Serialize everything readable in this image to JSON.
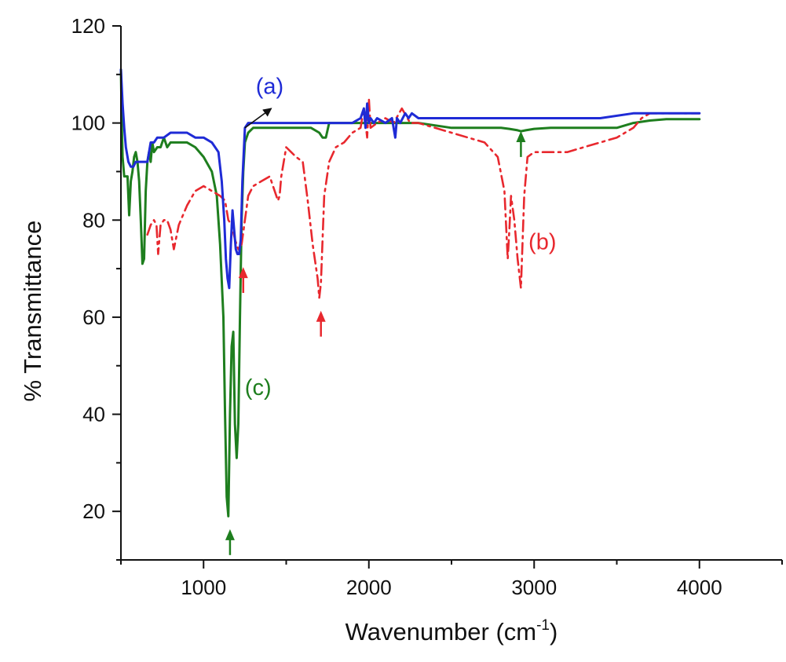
{
  "chart_data": {
    "type": "line",
    "title": "",
    "xlabel": "Wavenumber (cm",
    "xlabel_sup": "-1",
    "xlabel_close": ")",
    "ylabel": "% Transmittance",
    "xlim": [
      500,
      4500
    ],
    "ylim": [
      10,
      120
    ],
    "x_ticks": [
      1000,
      2000,
      3000,
      4000
    ],
    "y_ticks": [
      20,
      40,
      60,
      80,
      100,
      120
    ],
    "grid": false,
    "legend": "none",
    "series": [
      {
        "name": "(a)",
        "color": "#1f2bd6",
        "style": "solid",
        "x": [
          500,
          510,
          520,
          530,
          545,
          560,
          575,
          590,
          605,
          620,
          640,
          660,
          680,
          700,
          720,
          760,
          800,
          850,
          900,
          950,
          1000,
          1050,
          1090,
          1110,
          1125,
          1135,
          1145,
          1155,
          1165,
          1175,
          1185,
          1195,
          1205,
          1215,
          1225,
          1235,
          1250,
          1270,
          1300,
          1350,
          1400,
          1500,
          1600,
          1700,
          1800,
          1900,
          1950,
          1970,
          1980,
          1990,
          2000,
          2010,
          2030,
          2050,
          2100,
          2140,
          2160,
          2170,
          2190,
          2220,
          2240,
          2260,
          2300,
          2400,
          2500,
          2600,
          2700,
          2800,
          2900,
          3000,
          3200,
          3400,
          3600,
          3800,
          4000
        ],
        "y": [
          111,
          104,
          99,
          95,
          92,
          91,
          91,
          92,
          92,
          92,
          92,
          92,
          96,
          96,
          97,
          97,
          98,
          98,
          98,
          97,
          97,
          96,
          94,
          88,
          80,
          72,
          68,
          66,
          75,
          82,
          78,
          74,
          73,
          73,
          76,
          88,
          99,
          100,
          100,
          100,
          100,
          100,
          100,
          100,
          100,
          100,
          101,
          103,
          99,
          104,
          100,
          101,
          100,
          101,
          100,
          101,
          97,
          101,
          100,
          102,
          101,
          102,
          101,
          101,
          101,
          101,
          101,
          101,
          101,
          101,
          101,
          101,
          102,
          102,
          102
        ]
      },
      {
        "name": "(b)",
        "color": "#e8282e",
        "style": "dashdot",
        "x": [
          660,
          680,
          700,
          715,
          725,
          740,
          760,
          780,
          800,
          820,
          850,
          900,
          950,
          1000,
          1050,
          1100,
          1130,
          1150,
          1170,
          1190,
          1210,
          1230,
          1250,
          1270,
          1300,
          1350,
          1400,
          1430,
          1450,
          1460,
          1470,
          1500,
          1530,
          1560,
          1600,
          1630,
          1660,
          1690,
          1700,
          1710,
          1730,
          1760,
          1800,
          1850,
          1900,
          1950,
          1970,
          1990,
          2000,
          2010,
          2050,
          2100,
          2150,
          2200,
          2250,
          2300,
          2400,
          2500,
          2600,
          2700,
          2780,
          2820,
          2840,
          2850,
          2860,
          2880,
          2900,
          2920,
          2940,
          2960,
          3000,
          3100,
          3200,
          3300,
          3400,
          3500,
          3600,
          3650,
          3700,
          3800,
          3900,
          4000
        ],
        "y": [
          77,
          79,
          80,
          79,
          73,
          79,
          80,
          80,
          78,
          74,
          79,
          83,
          86,
          87,
          86,
          85,
          84,
          80,
          79,
          76,
          74,
          75,
          80,
          85,
          87,
          88,
          89,
          86,
          84,
          85,
          89,
          95,
          94,
          93,
          92,
          84,
          75,
          68,
          64,
          67,
          85,
          92,
          95,
          96,
          98,
          99,
          103,
          97,
          105,
          99,
          100,
          101,
          100,
          103,
          100,
          100,
          99,
          98,
          97,
          96,
          93,
          86,
          72,
          78,
          85,
          80,
          72,
          66,
          85,
          93,
          94,
          94,
          94,
          95,
          96,
          97,
          99,
          101,
          102,
          102,
          102,
          102
        ]
      },
      {
        "name": "(c)",
        "color": "#1e7e1e",
        "style": "solid",
        "x": [
          500,
          505,
          510,
          520,
          530,
          540,
          550,
          560,
          570,
          580,
          590,
          600,
          610,
          620,
          630,
          640,
          650,
          660,
          670,
          680,
          690,
          700,
          720,
          740,
          760,
          780,
          800,
          850,
          900,
          950,
          1000,
          1050,
          1080,
          1100,
          1120,
          1130,
          1140,
          1150,
          1160,
          1170,
          1180,
          1190,
          1200,
          1210,
          1220,
          1230,
          1240,
          1250,
          1270,
          1300,
          1400,
          1500,
          1600,
          1650,
          1700,
          1720,
          1740,
          1760,
          1800,
          1850,
          1900,
          2000,
          2100,
          2200,
          2300,
          2400,
          2500,
          2600,
          2700,
          2800,
          2850,
          2900,
          2920,
          2950,
          3000,
          3100,
          3200,
          3300,
          3400,
          3500,
          3600,
          3700,
          3800,
          4000
        ],
        "y": [
          111,
          100,
          93,
          89,
          89,
          89,
          81,
          88,
          90,
          93,
          94,
          92,
          88,
          80,
          71,
          72,
          86,
          92,
          94,
          92,
          96,
          94,
          95,
          95,
          97,
          95,
          96,
          96,
          96,
          95,
          93,
          90,
          85,
          75,
          60,
          40,
          23,
          19,
          40,
          54,
          57,
          38,
          31,
          38,
          60,
          80,
          90,
          96,
          98,
          99,
          99,
          99,
          99,
          99,
          98,
          97,
          97,
          100,
          100,
          100,
          100,
          100,
          100,
          100,
          100,
          99.5,
          99,
          99,
          99,
          99,
          98.8,
          98.5,
          98.3,
          98.5,
          98.8,
          99,
          99,
          99,
          99,
          99,
          100,
          100.5,
          100.8,
          100.8
        ]
      }
    ],
    "annotations": [
      {
        "text": "(a)",
        "series": "(a)",
        "x": 1400,
        "y": 106,
        "arrow_from": [
          1410,
          103
        ],
        "arrow_to": [
          1250,
          99
        ]
      },
      {
        "text": "(b)",
        "series": "(b)",
        "x": 3050,
        "y": 74
      },
      {
        "text": "(c)",
        "series": "(c)",
        "x": 1330,
        "y": 44
      }
    ],
    "markers": [
      {
        "series": "(c)",
        "color": "#1e7e1e",
        "x": 1160,
        "y_tail": 11,
        "y_head": 16
      },
      {
        "series": "(b)",
        "color": "#e8282e",
        "x": 1240,
        "y_tail": 65,
        "y_head": 70
      },
      {
        "series": "(b)",
        "color": "#e8282e",
        "x": 1710,
        "y_tail": 56,
        "y_head": 61
      },
      {
        "series": "(c)",
        "color": "#1e7e1e",
        "x": 2920,
        "y_tail": 93,
        "y_head": 98
      }
    ]
  }
}
